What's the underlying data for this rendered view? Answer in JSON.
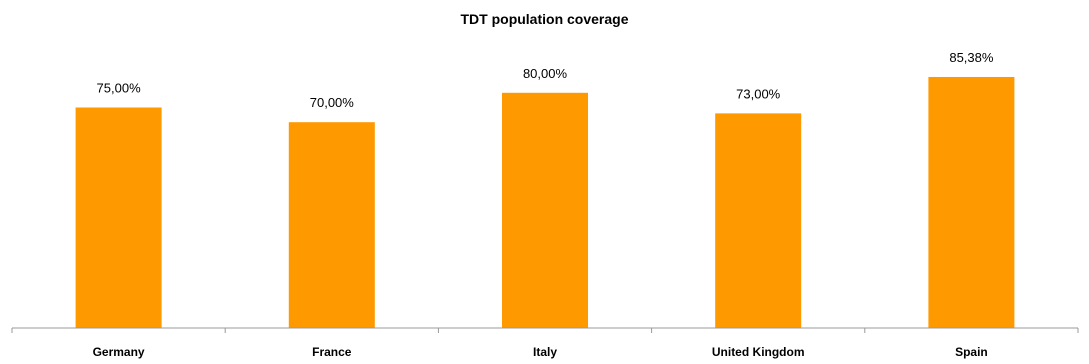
{
  "chart_data": {
    "type": "bar",
    "title": "TDT population coverage",
    "categories": [
      "Germany",
      "France",
      "Italy",
      "United Kingdom",
      "Spain"
    ],
    "values": [
      75.0,
      70.0,
      80.0,
      73.0,
      85.38
    ],
    "data_labels": [
      "75,00%",
      "70,00%",
      "80,00%",
      "73,00%",
      "85,38%"
    ],
    "xlabel": "",
    "ylabel": "",
    "ylim": [
      0,
      100
    ],
    "y_axis_visible": false,
    "grid": false,
    "legend": "none",
    "bar_color": "#FF9900"
  }
}
